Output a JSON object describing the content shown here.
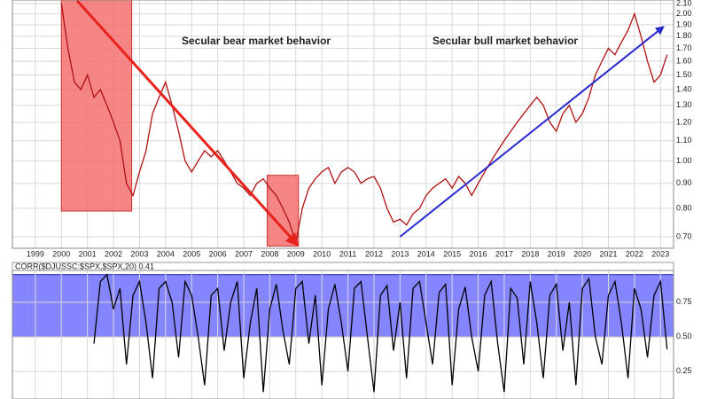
{
  "chart_data": [
    {
      "type": "line",
      "log": true,
      "grid": true,
      "x": [
        2000,
        2000.25,
        2000.5,
        2000.75,
        2001,
        2001.25,
        2001.5,
        2001.75,
        2002,
        2002.25,
        2002.5,
        2002.75,
        2003,
        2003.25,
        2003.5,
        2003.75,
        2004,
        2004.25,
        2004.5,
        2004.75,
        2005,
        2005.25,
        2005.5,
        2005.75,
        2006,
        2006.25,
        2006.5,
        2006.75,
        2007,
        2007.25,
        2007.5,
        2007.75,
        2008,
        2008.25,
        2008.5,
        2008.75,
        2009,
        2009.25,
        2009.5,
        2009.75,
        2010,
        2010.25,
        2010.5,
        2010.75,
        2011,
        2011.25,
        2011.5,
        2011.75,
        2012,
        2012.25,
        2012.5,
        2012.75,
        2013,
        2013.25,
        2013.5,
        2013.75,
        2014,
        2014.25,
        2014.5,
        2014.75,
        2015,
        2015.25,
        2015.5,
        2015.75,
        2016,
        2016.25,
        2016.5,
        2016.75,
        2017,
        2017.25,
        2017.5,
        2017.75,
        2018,
        2018.25,
        2018.5,
        2018.75,
        2019,
        2019.25,
        2019.5,
        2019.75,
        2020,
        2020.25,
        2020.5,
        2020.75,
        2021,
        2021.25,
        2021.5,
        2021.75,
        2022,
        2022.25,
        2022.5,
        2022.75,
        2023,
        2023.25
      ],
      "series": [
        {
          "color": "#b01010",
          "values": [
            2.1,
            1.7,
            1.45,
            1.4,
            1.5,
            1.35,
            1.4,
            1.3,
            1.2,
            1.1,
            0.9,
            0.85,
            0.95,
            1.05,
            1.25,
            1.35,
            1.45,
            1.3,
            1.15,
            1.0,
            0.95,
            1.0,
            1.05,
            1.02,
            1.05,
            1.0,
            0.95,
            0.9,
            0.88,
            0.85,
            0.9,
            0.92,
            0.88,
            0.85,
            0.8,
            0.75,
            0.68,
            0.8,
            0.88,
            0.92,
            0.95,
            0.97,
            0.9,
            0.95,
            0.97,
            0.95,
            0.9,
            0.92,
            0.93,
            0.88,
            0.8,
            0.75,
            0.76,
            0.74,
            0.78,
            0.8,
            0.85,
            0.88,
            0.9,
            0.92,
            0.88,
            0.93,
            0.9,
            0.85,
            0.9,
            0.95,
            1.0,
            1.05,
            1.1,
            1.15,
            1.2,
            1.25,
            1.3,
            1.35,
            1.3,
            1.2,
            1.15,
            1.25,
            1.3,
            1.2,
            1.25,
            1.35,
            1.5,
            1.6,
            1.7,
            1.65,
            1.75,
            1.85,
            2.0,
            1.8,
            1.6,
            1.45,
            1.5,
            1.65
          ]
        }
      ],
      "xlim": [
        1998.12,
        2023.5
      ],
      "xticks": [
        1999,
        2000,
        2001,
        2002,
        2003,
        2004,
        2005,
        2006,
        2007,
        2008,
        2009,
        2010,
        2011,
        2012,
        2013,
        2014,
        2015,
        2016,
        2017,
        2018,
        2019,
        2020,
        2021,
        2022,
        2023
      ],
      "ylim": [
        0.663,
        2.135
      ],
      "yticks": [
        {
          "value": 0.7,
          "label": "0.70"
        },
        {
          "value": 0.8,
          "label": "0.80"
        },
        {
          "value": 0.9,
          "label": "0.90"
        },
        {
          "value": 1.0,
          "label": "1.00"
        },
        {
          "value": 1.1,
          "label": "1.10"
        },
        {
          "value": 1.2,
          "label": "1.20"
        },
        {
          "value": 1.3,
          "label": "1.30"
        },
        {
          "value": 1.4,
          "label": "1.40"
        },
        {
          "value": 1.5,
          "label": "1.50"
        },
        {
          "value": 1.6,
          "label": "1.60"
        },
        {
          "value": 1.7,
          "label": "1.70"
        },
        {
          "value": 1.8,
          "label": "1.80"
        },
        {
          "value": 1.9,
          "label": "1.90"
        },
        {
          "value": 2.0,
          "label": "2.00"
        },
        {
          "value": 2.1,
          "label": "2.10"
        }
      ],
      "regions": [
        {
          "x": [
            2000,
            2002.7
          ],
          "y": [
            0.79,
            2.135
          ],
          "color": "#f47070"
        },
        {
          "x": [
            2007.9,
            2009.1
          ],
          "y": [
            0.67,
            0.935
          ],
          "color": "#f47070"
        }
      ],
      "arrows": [
        {
          "from": [
            2000.6,
            2.13
          ],
          "to": [
            2009.05,
            0.675
          ],
          "color": "#e8231c"
        },
        {
          "from": [
            2013.0,
            0.7
          ],
          "to": [
            2023.1,
            1.88
          ],
          "color": "#2a2ad0"
        }
      ],
      "annotations": [
        {
          "text": "Secular bear market behavior",
          "color": "#e8231c"
        },
        {
          "text": "Secular bull market behavior",
          "color": "#2a2ad0"
        }
      ]
    },
    {
      "type": "line",
      "title": "CORR($DJUSSC:$SPX,$SPX,20) 0.41",
      "grid": true,
      "x": [
        2001.25,
        2001.5,
        2001.75,
        2002,
        2002.25,
        2002.5,
        2002.75,
        2003,
        2003.25,
        2003.5,
        2003.75,
        2004,
        2004.25,
        2004.5,
        2004.75,
        2005,
        2005.25,
        2005.5,
        2005.75,
        2006,
        2006.25,
        2006.5,
        2006.75,
        2007,
        2007.25,
        2007.5,
        2007.75,
        2008,
        2008.25,
        2008.5,
        2008.75,
        2009,
        2009.25,
        2009.5,
        2009.75,
        2010,
        2010.25,
        2010.5,
        2010.75,
        2011,
        2011.25,
        2011.5,
        2011.75,
        2012,
        2012.25,
        2012.5,
        2012.75,
        2013,
        2013.25,
        2013.5,
        2013.75,
        2014,
        2014.25,
        2014.5,
        2014.75,
        2015,
        2015.25,
        2015.5,
        2015.75,
        2016,
        2016.25,
        2016.5,
        2016.75,
        2017,
        2017.25,
        2017.5,
        2017.75,
        2018,
        2018.25,
        2018.5,
        2018.75,
        2019,
        2019.25,
        2019.5,
        2019.75,
        2020,
        2020.25,
        2020.5,
        2020.75,
        2021,
        2021.25,
        2021.5,
        2021.75,
        2022,
        2022.25,
        2022.5,
        2022.75,
        2023,
        2023.25
      ],
      "series": [
        {
          "color": "#000000",
          "values": [
            0.45,
            0.9,
            0.95,
            0.7,
            0.85,
            0.3,
            0.8,
            0.9,
            0.6,
            0.2,
            0.85,
            0.9,
            0.75,
            0.35,
            0.9,
            0.8,
            0.5,
            0.15,
            0.8,
            0.85,
            0.4,
            0.75,
            0.9,
            0.2,
            0.6,
            0.85,
            0.1,
            0.7,
            0.88,
            0.55,
            0.3,
            0.85,
            0.9,
            0.45,
            0.8,
            0.15,
            0.7,
            0.88,
            0.6,
            0.25,
            0.85,
            0.9,
            0.5,
            0.1,
            0.8,
            0.87,
            0.4,
            0.75,
            0.2,
            0.85,
            0.9,
            0.6,
            0.3,
            0.82,
            0.88,
            0.15,
            0.7,
            0.86,
            0.5,
            0.25,
            0.8,
            0.9,
            0.45,
            0.1,
            0.85,
            0.78,
            0.3,
            0.9,
            0.6,
            0.2,
            0.8,
            0.88,
            0.4,
            0.75,
            0.15,
            0.85,
            0.92,
            0.5,
            0.3,
            0.8,
            0.9,
            0.6,
            0.2,
            0.85,
            0.7,
            0.35,
            0.8,
            0.9,
            0.41
          ]
        }
      ],
      "xlim": [
        1998.12,
        2023.5
      ],
      "ylim": [
        0.05,
        0.98
      ],
      "yticks": [
        {
          "value": 0.25,
          "label": "0.25"
        },
        {
          "value": 0.5,
          "label": "0.50"
        },
        {
          "value": 0.75,
          "label": "0.75"
        }
      ],
      "band": {
        "y": [
          0.5,
          0.95
        ],
        "color": "#8585ff"
      }
    }
  ]
}
